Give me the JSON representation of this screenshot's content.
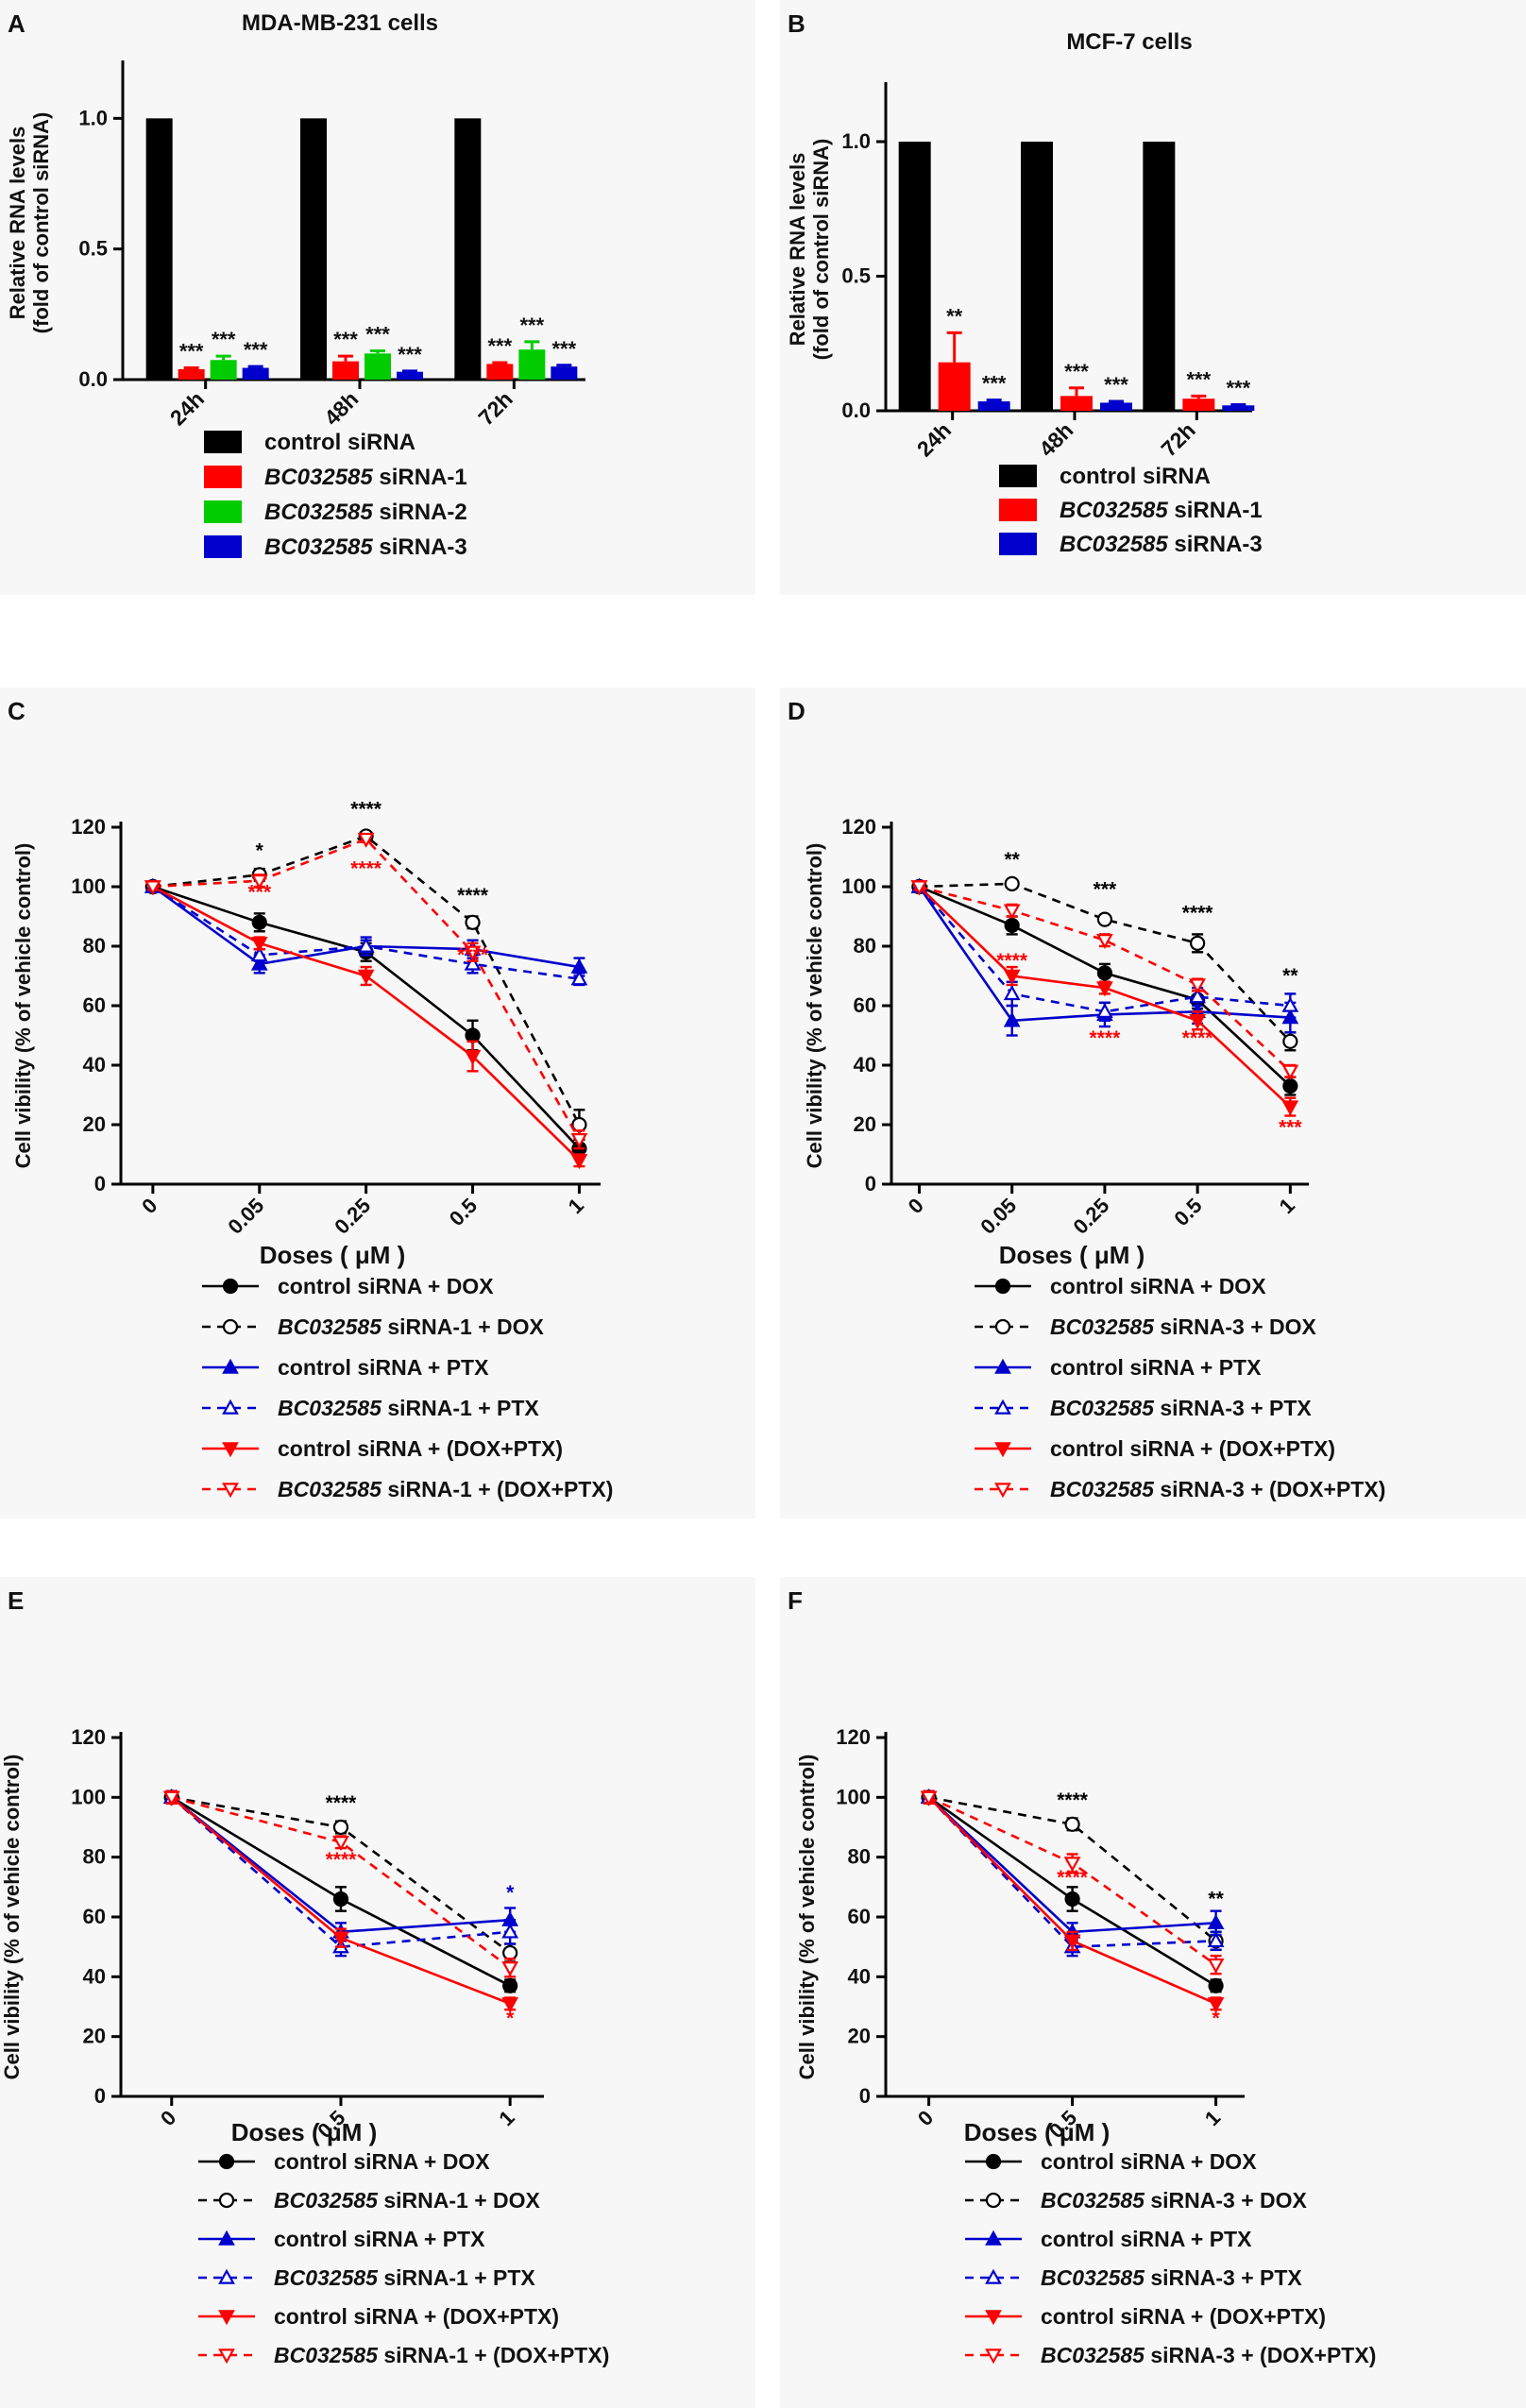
{
  "chart_data": [
    {
      "panel": "A",
      "type": "bar",
      "title": "MDA-MB-231 cells",
      "ylabel": "Relative RNA levels\n(fold of control siRNA)",
      "xlabel": "",
      "categories": [
        "24h",
        "48h",
        "72h"
      ],
      "yticks": [
        "0.0",
        "0.5",
        "1.0"
      ],
      "ylim": [
        0,
        1.2
      ],
      "series": [
        {
          "name": "control siRNA",
          "name_italic": "",
          "name_rest": "control siRNA",
          "color": "#000000",
          "values": [
            1.0,
            1.0,
            1.0
          ],
          "errors": [
            0,
            0,
            0
          ],
          "stars": [
            "",
            "",
            ""
          ]
        },
        {
          "name": "BC032585 siRNA-1",
          "name_italic": "BC032585",
          "name_rest": " siRNA-1",
          "color": "#ff0000",
          "values": [
            0.04,
            0.07,
            0.06
          ],
          "errors": [
            0.005,
            0.02,
            0.005
          ],
          "stars": [
            "***",
            "***",
            "***"
          ]
        },
        {
          "name": "BC032585 siRNA-2",
          "name_italic": "BC032585",
          "name_rest": " siRNA-2",
          "color": "#00cc00",
          "values": [
            0.075,
            0.1,
            0.115
          ],
          "errors": [
            0.015,
            0.01,
            0.03
          ],
          "stars": [
            "***",
            "***",
            "***"
          ]
        },
        {
          "name": "BC032585 siRNA-3",
          "name_italic": "BC032585",
          "name_rest": " siRNA-3",
          "color": "#0000cc",
          "values": [
            0.045,
            0.03,
            0.05
          ],
          "errors": [
            0.005,
            0.003,
            0.005
          ],
          "stars": [
            "***",
            "***",
            "***"
          ]
        }
      ]
    },
    {
      "panel": "B",
      "type": "bar",
      "title": "MCF-7 cells",
      "ylabel": "Relative RNA levels\n(fold of control siRNA)",
      "xlabel": "",
      "categories": [
        "24h",
        "48h",
        "72h"
      ],
      "yticks": [
        "0.0",
        "0.5",
        "1.0"
      ],
      "ylim": [
        0,
        1.2
      ],
      "series": [
        {
          "name": "control siRNA",
          "name_italic": "",
          "name_rest": "control siRNA",
          "color": "#000000",
          "values": [
            1.0,
            1.0,
            1.0
          ],
          "errors": [
            0,
            0,
            0
          ],
          "stars": [
            "",
            "",
            ""
          ]
        },
        {
          "name": "BC032585 siRNA-1",
          "name_italic": "BC032585",
          "name_rest": " siRNA-1",
          "color": "#ff0000",
          "values": [
            0.18,
            0.055,
            0.045
          ],
          "errors": [
            0.11,
            0.03,
            0.01
          ],
          "stars": [
            "**",
            "***",
            "***"
          ]
        },
        {
          "name": "BC032585 siRNA-3",
          "name_italic": "BC032585",
          "name_rest": " siRNA-3",
          "color": "#0000cc",
          "values": [
            0.035,
            0.03,
            0.02
          ],
          "errors": [
            0.005,
            0.005,
            0.003
          ],
          "stars": [
            "***",
            "***",
            "***"
          ]
        }
      ]
    },
    {
      "panel": "C",
      "type": "line",
      "title": "",
      "ylabel": "Cell vibility (% of vehicle control)",
      "xlabel": "Doses ( μM )",
      "x": [
        "0",
        "0.05",
        "0.25",
        "0.5",
        "1"
      ],
      "yticks": [
        "0",
        "20",
        "40",
        "60",
        "80",
        "100",
        "120"
      ],
      "ylim": [
        0,
        120
      ],
      "series": [
        {
          "name": "control siRNA + DOX",
          "name_italic": "",
          "name_rest": "control siRNA + DOX",
          "color": "#000000",
          "dash": false,
          "marker": "circle",
          "filled": true,
          "values": [
            100,
            88,
            78,
            50,
            12
          ],
          "errors": [
            1,
            3,
            3,
            5,
            3
          ]
        },
        {
          "name": "BC032585 siRNA-1 + DOX",
          "name_italic": "BC032585",
          "name_rest": " siRNA-1 + DOX",
          "color": "#000000",
          "dash": true,
          "marker": "circle",
          "filled": false,
          "values": [
            100,
            104,
            117,
            88,
            20
          ],
          "errors": [
            1,
            2,
            1,
            2,
            5
          ]
        },
        {
          "name": "control siRNA + PTX",
          "name_italic": "",
          "name_rest": "control siRNA + PTX",
          "color": "#0000cc",
          "dash": false,
          "marker": "triangle",
          "filled": true,
          "values": [
            100,
            74,
            80,
            79,
            73
          ],
          "errors": [
            1,
            3,
            3,
            3,
            3
          ]
        },
        {
          "name": "BC032585 siRNA-1 + PTX",
          "name_italic": "BC032585",
          "name_rest": " siRNA-1 + PTX",
          "color": "#0000cc",
          "dash": true,
          "marker": "triangle",
          "filled": false,
          "values": [
            100,
            77,
            80,
            74,
            69
          ],
          "errors": [
            1,
            2,
            2,
            3,
            2
          ]
        },
        {
          "name": "control siRNA + (DOX+PTX)",
          "name_italic": "",
          "name_rest": "control siRNA + (DOX+PTX)",
          "color": "#ff0000",
          "dash": false,
          "marker": "triangle-down",
          "filled": true,
          "values": [
            100,
            81,
            70,
            43,
            8
          ],
          "errors": [
            1,
            2,
            3,
            5,
            2
          ]
        },
        {
          "name": "BC032585 siRNA-1 + (DOX+PTX)",
          "name_italic": "BC032585",
          "name_rest": " siRNA-1 + (DOX+PTX)",
          "color": "#ff0000",
          "dash": true,
          "marker": "triangle-down",
          "filled": false,
          "values": [
            100,
            102,
            116,
            78,
            15
          ],
          "errors": [
            1,
            2,
            1,
            3,
            3
          ]
        }
      ],
      "annotations": [
        {
          "x": "0.05",
          "text": "*",
          "color": "#000000",
          "value": 110
        },
        {
          "x": "0.05",
          "text": "***",
          "color": "#ff0000",
          "value": 96
        },
        {
          "x": "0.25",
          "text": "****",
          "color": "#000000",
          "value": 124
        },
        {
          "x": "0.25",
          "text": "****",
          "color": "#ff0000",
          "value": 104
        },
        {
          "x": "0.5",
          "text": "****",
          "color": "#000000",
          "value": 95
        },
        {
          "x": "0.5",
          "text": "****",
          "color": "#ff0000",
          "value": 75
        }
      ]
    },
    {
      "panel": "D",
      "type": "line",
      "title": "",
      "ylabel": "Cell vibility (% of vehicle control)",
      "xlabel": "Doses ( μM )",
      "x": [
        "0",
        "0.05",
        "0.25",
        "0.5",
        "1"
      ],
      "yticks": [
        "0",
        "20",
        "40",
        "60",
        "80",
        "100",
        "120"
      ],
      "ylim": [
        0,
        120
      ],
      "series": [
        {
          "name": "control siRNA + DOX",
          "name_italic": "",
          "name_rest": "control siRNA + DOX",
          "color": "#000000",
          "dash": false,
          "marker": "circle",
          "filled": true,
          "values": [
            100,
            87,
            71,
            62,
            33
          ],
          "errors": [
            1,
            3,
            3,
            3,
            3
          ]
        },
        {
          "name": "BC032585 siRNA-3 + DOX",
          "name_italic": "BC032585",
          "name_rest": " siRNA-3 + DOX",
          "color": "#000000",
          "dash": true,
          "marker": "circle",
          "filled": false,
          "values": [
            100,
            101,
            89,
            81,
            48
          ],
          "errors": [
            1,
            1,
            1,
            3,
            3
          ]
        },
        {
          "name": "control siRNA + PTX",
          "name_italic": "",
          "name_rest": "control siRNA + PTX",
          "color": "#0000cc",
          "dash": false,
          "marker": "triangle",
          "filled": true,
          "values": [
            100,
            55,
            57,
            58,
            56
          ],
          "errors": [
            1,
            5,
            4,
            4,
            5
          ]
        },
        {
          "name": "BC032585 siRNA-3 + PTX",
          "name_italic": "BC032585",
          "name_rest": " siRNA-3 + PTX",
          "color": "#0000cc",
          "dash": true,
          "marker": "triangle",
          "filled": false,
          "values": [
            100,
            64,
            58,
            63,
            60
          ],
          "errors": [
            1,
            4,
            3,
            3,
            4
          ]
        },
        {
          "name": "control siRNA + (DOX+PTX)",
          "name_italic": "",
          "name_rest": "control siRNA + (DOX+PTX)",
          "color": "#ff0000",
          "dash": false,
          "marker": "triangle-down",
          "filled": true,
          "values": [
            100,
            70,
            66,
            55,
            26
          ],
          "errors": [
            1,
            3,
            2,
            3,
            3
          ]
        },
        {
          "name": "BC032585 siRNA-3 + (DOX+PTX)",
          "name_italic": "BC032585",
          "name_rest": " siRNA-3 + (DOX+PTX)",
          "color": "#ff0000",
          "dash": true,
          "marker": "triangle-down",
          "filled": false,
          "values": [
            100,
            92,
            82,
            67,
            38
          ],
          "errors": [
            1,
            2,
            2,
            2,
            2
          ]
        }
      ],
      "annotations": [
        {
          "x": "0.05",
          "text": "**",
          "color": "#000000",
          "value": 107
        },
        {
          "x": "0.05",
          "text": "****",
          "color": "#ff0000",
          "value": 73
        },
        {
          "x": "0.25",
          "text": "***",
          "color": "#000000",
          "value": 97
        },
        {
          "x": "0.25",
          "text": "****",
          "color": "#ff0000",
          "value": 47
        },
        {
          "x": "0.5",
          "text": "****",
          "color": "#000000",
          "value": 89
        },
        {
          "x": "0.5",
          "text": "****",
          "color": "#ff0000",
          "value": 47
        },
        {
          "x": "1",
          "text": "**",
          "color": "#000000",
          "value": 68
        },
        {
          "x": "1",
          "text": "***",
          "color": "#ff0000",
          "value": 17
        }
      ]
    },
    {
      "panel": "E",
      "type": "line",
      "title": "",
      "ylabel": "Cell vibility (% of vehicle control)",
      "xlabel": "Doses ( μM )",
      "x": [
        "0",
        "0.5",
        "1"
      ],
      "yticks": [
        "0",
        "20",
        "40",
        "60",
        "80",
        "100",
        "120"
      ],
      "ylim": [
        0,
        120
      ],
      "series": [
        {
          "name": "control siRNA + DOX",
          "name_italic": "",
          "name_rest": "control siRNA + DOX",
          "color": "#000000",
          "dash": false,
          "marker": "circle",
          "filled": true,
          "values": [
            100,
            66,
            37
          ],
          "errors": [
            2,
            4,
            2
          ]
        },
        {
          "name": "BC032585 siRNA-1 + DOX",
          "name_italic": "BC032585",
          "name_rest": " siRNA-1 + DOX",
          "color": "#000000",
          "dash": true,
          "marker": "circle",
          "filled": false,
          "values": [
            100,
            90,
            48
          ],
          "errors": [
            2,
            2,
            3
          ]
        },
        {
          "name": "control siRNA + PTX",
          "name_italic": "",
          "name_rest": "control siRNA + PTX",
          "color": "#0000cc",
          "dash": false,
          "marker": "triangle",
          "filled": true,
          "values": [
            100,
            55,
            59
          ],
          "errors": [
            2,
            3,
            4
          ]
        },
        {
          "name": "BC032585 siRNA-1 + PTX",
          "name_italic": "BC032585",
          "name_rest": " siRNA-1 + PTX",
          "color": "#0000cc",
          "dash": true,
          "marker": "triangle",
          "filled": false,
          "values": [
            100,
            50,
            55
          ],
          "errors": [
            2,
            3,
            4
          ]
        },
        {
          "name": "control siRNA + (DOX+PTX)",
          "name_italic": "",
          "name_rest": "control siRNA + (DOX+PTX)",
          "color": "#ff0000",
          "dash": false,
          "marker": "triangle-down",
          "filled": true,
          "values": [
            100,
            53,
            31
          ],
          "errors": [
            2,
            3,
            2
          ]
        },
        {
          "name": "BC032585 siRNA-1 + (DOX+PTX)",
          "name_italic": "BC032585",
          "name_rest": " siRNA-1 + (DOX+PTX)",
          "color": "#ff0000",
          "dash": true,
          "marker": "triangle-down",
          "filled": false,
          "values": [
            100,
            85,
            43
          ],
          "errors": [
            2,
            2,
            3
          ]
        }
      ],
      "annotations": [
        {
          "x": "0.5",
          "text": "****",
          "color": "#000000",
          "value": 96
        },
        {
          "x": "0.5",
          "text": "****",
          "color": "#ff0000",
          "value": 77
        },
        {
          "x": "1",
          "text": "*",
          "color": "#0000cc",
          "value": 66
        },
        {
          "x": "1",
          "text": "*",
          "color": "#ff0000",
          "value": 24
        }
      ]
    },
    {
      "panel": "F",
      "type": "line",
      "title": "",
      "ylabel": "Cell vibility (% of vehicle control)",
      "xlabel": "Doses ( μM )",
      "x": [
        "0",
        "0.5",
        "1"
      ],
      "yticks": [
        "0",
        "20",
        "40",
        "60",
        "80",
        "100",
        "120"
      ],
      "ylim": [
        0,
        120
      ],
      "series": [
        {
          "name": "control siRNA + DOX",
          "name_italic": "",
          "name_rest": "control siRNA + DOX",
          "color": "#000000",
          "dash": false,
          "marker": "circle",
          "filled": true,
          "values": [
            100,
            66,
            37
          ],
          "errors": [
            2,
            4,
            2
          ]
        },
        {
          "name": "BC032585 siRNA-3 + DOX",
          "name_italic": "BC032585",
          "name_rest": " siRNA-3 + DOX",
          "color": "#000000",
          "dash": true,
          "marker": "circle",
          "filled": false,
          "values": [
            100,
            91,
            52
          ],
          "errors": [
            2,
            2,
            3
          ]
        },
        {
          "name": "control siRNA + PTX",
          "name_italic": "",
          "name_rest": "control siRNA + PTX",
          "color": "#0000cc",
          "dash": false,
          "marker": "triangle",
          "filled": true,
          "values": [
            100,
            55,
            58
          ],
          "errors": [
            2,
            3,
            4
          ]
        },
        {
          "name": "BC032585 siRNA-3 + PTX",
          "name_italic": "BC032585",
          "name_rest": " siRNA-3 + PTX",
          "color": "#0000cc",
          "dash": true,
          "marker": "triangle",
          "filled": false,
          "values": [
            100,
            50,
            52
          ],
          "errors": [
            2,
            3,
            3
          ]
        },
        {
          "name": "control siRNA + (DOX+PTX)",
          "name_italic": "",
          "name_rest": "control siRNA + (DOX+PTX)",
          "color": "#ff0000",
          "dash": false,
          "marker": "triangle-down",
          "filled": true,
          "values": [
            100,
            52,
            31
          ],
          "errors": [
            2,
            3,
            2
          ]
        },
        {
          "name": "BC032585 siRNA-3 + (DOX+PTX)",
          "name_italic": "BC032585",
          "name_rest": " siRNA-3 + (DOX+PTX)",
          "color": "#ff0000",
          "dash": true,
          "marker": "triangle-down",
          "filled": false,
          "values": [
            100,
            78,
            44
          ],
          "errors": [
            2,
            3,
            3
          ]
        }
      ],
      "annotations": [
        {
          "x": "0.5",
          "text": "****",
          "color": "#000000",
          "value": 97
        },
        {
          "x": "0.5",
          "text": "****",
          "color": "#ff0000",
          "value": 71
        },
        {
          "x": "1",
          "text": "**",
          "color": "#000000",
          "value": 64
        },
        {
          "x": "1",
          "text": "*",
          "color": "#ff0000",
          "value": 24
        }
      ]
    }
  ]
}
